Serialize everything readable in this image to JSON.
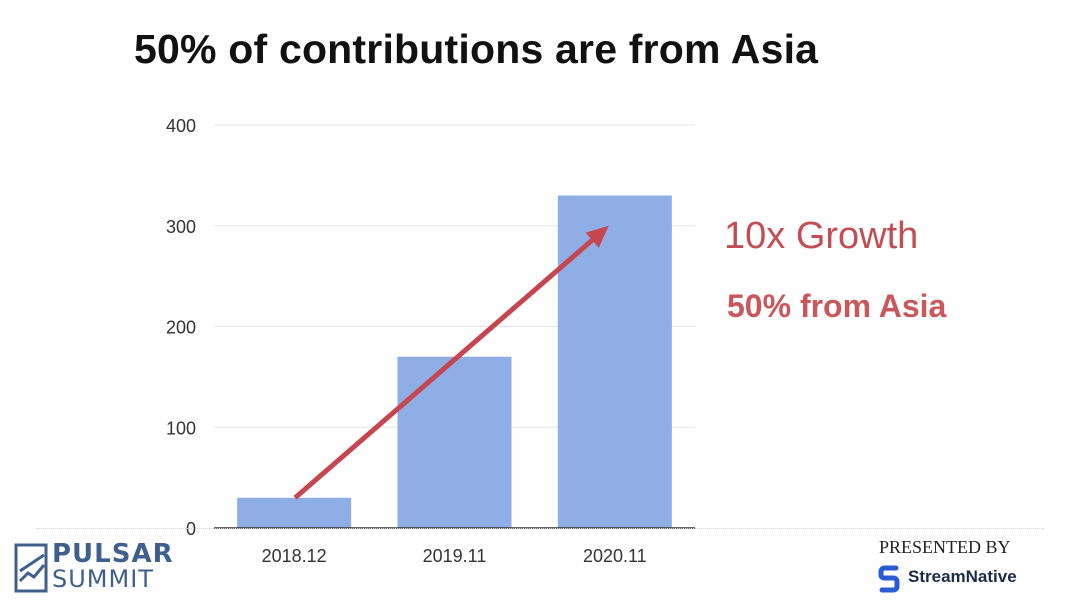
{
  "slide": {
    "title": "50% of contributions are from Asia",
    "annotation_growth": "10x Growth",
    "annotation_asia": "50% from Asia"
  },
  "footer": {
    "logo_line1": "PULSAR",
    "logo_line2": "SUMMIT",
    "presented_by": "PRESENTED BY",
    "sponsor": "StreamNative"
  },
  "colors": {
    "bar": "#8eaee5",
    "arrow": "#c6464f",
    "annotation": "#c44d55",
    "logo": "#3f5f8c"
  },
  "chart_data": {
    "type": "bar",
    "categories": [
      "2018.12",
      "2019.11",
      "2020.11"
    ],
    "values": [
      30,
      170,
      330
    ],
    "ylim": [
      0,
      400
    ],
    "yticks": [
      "0",
      "100",
      "200",
      "300",
      "400"
    ],
    "grid": true,
    "title": "",
    "xlabel": "",
    "ylabel": "",
    "trend_arrow": {
      "from_category": "2018.12",
      "to_category": "2020.11",
      "from_value": 30,
      "to_value": 300
    }
  }
}
